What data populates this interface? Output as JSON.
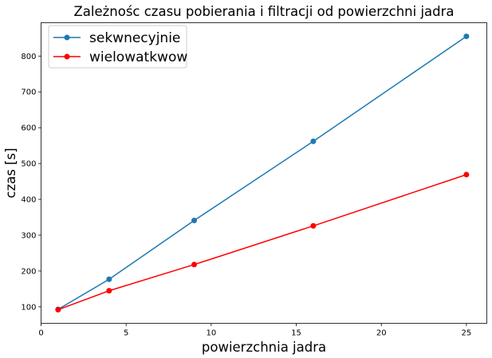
{
  "chart_data": {
    "type": "line",
    "title": "Zależnośc czasu pobierania i filtracji od powierzchni jadra",
    "xlabel": "powierzchnia jadra",
    "ylabel": "czas [s]",
    "x": [
      1,
      4,
      9,
      16,
      25
    ],
    "series": [
      {
        "name": "sekwnecyjnie",
        "color": "#1f77b4",
        "values": [
          93,
          177,
          341,
          562,
          855
        ]
      },
      {
        "name": "wielowatkwow",
        "color": "#ff0000",
        "values": [
          92,
          145,
          218,
          326,
          469
        ]
      }
    ],
    "xlim": [
      0,
      26.2
    ],
    "ylim": [
      54,
      893
    ],
    "xticks": [
      0,
      5,
      10,
      15,
      20,
      25
    ],
    "yticks": [
      100,
      200,
      300,
      400,
      500,
      600,
      700,
      800
    ],
    "xtick_labels": [
      "0",
      "5",
      "10",
      "15",
      "20",
      "25"
    ],
    "ytick_labels": [
      "100",
      "200",
      "300",
      "400",
      "500",
      "600",
      "700",
      "800"
    ],
    "grid": false,
    "legend_position": "top-left",
    "marker": "circle"
  }
}
